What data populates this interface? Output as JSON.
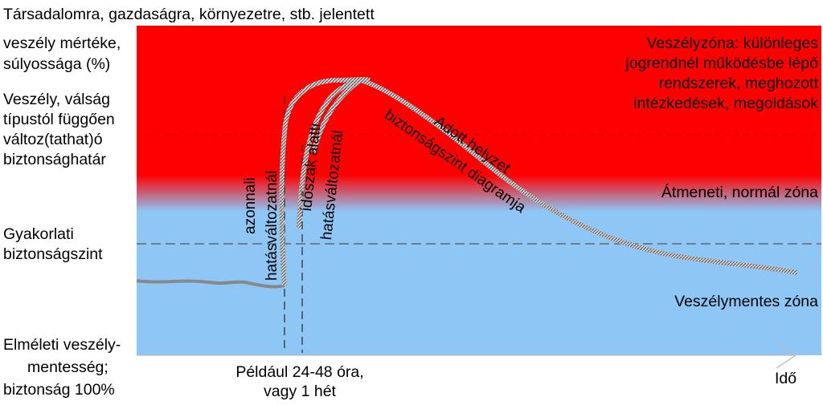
{
  "colors": {
    "danger": "#ff0000",
    "safe": "#8ec6f5",
    "band": "#9a9a9a"
  },
  "y_axis": {
    "title_line1": "Társadalomra, gazdaságra, környezetre, stb. jelentett",
    "title_line2": "veszély mértéke,",
    "title_line3": "súlyossága (%)"
  },
  "left_labels": {
    "boundary": [
      "Veszély, válság",
      "típustól függően",
      "változ(tathat)ó",
      "biztonsághatár"
    ],
    "practical": [
      "Gyakorlati",
      "biztonságszint"
    ],
    "theoretical": [
      "Elméleti veszély-",
      "mentesség;",
      "biztonság 100%"
    ]
  },
  "zones": {
    "danger": [
      "Veszélyzóna: különleges",
      "jogrendnél működésbe lépő",
      "rendszerek, meghozott",
      "intézkedések, megoldások"
    ],
    "transition": "Átmeneti, normál zóna",
    "safe": "Veszélymentes zóna"
  },
  "curve_labels": {
    "immediate_1": "azonnali",
    "immediate_2": "hatásváltozatnál",
    "period_1": "időszak alatti",
    "period_2": "hatásváltozatnál",
    "diagram_1": "Adott helyzet",
    "diagram_2": "biztonságszint diagramja"
  },
  "x_axis": {
    "example_line1": "Például 24-48 óra,",
    "example_line2": "vagy 1 hét",
    "label": "Idő"
  }
}
